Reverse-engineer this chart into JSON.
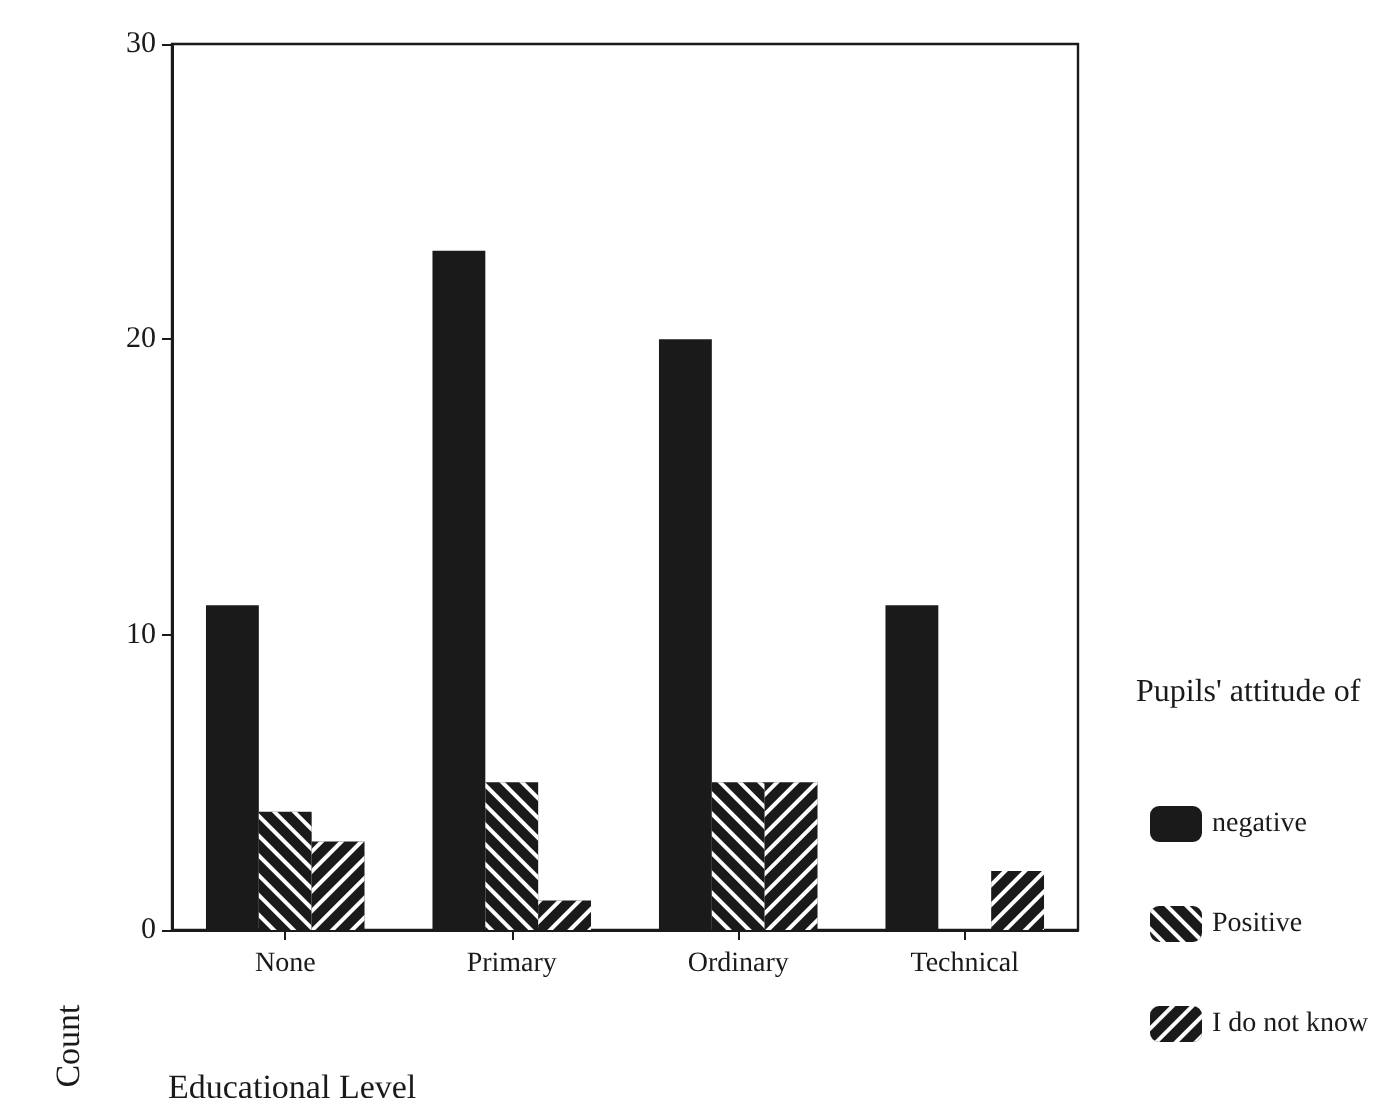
{
  "chart_data": {
    "type": "bar",
    "xlabel": "Educational Level",
    "ylabel": "Count",
    "legend_title": "Pupils' attitude of",
    "categories": [
      "None",
      "Primary",
      "Ordinary",
      "Technical"
    ],
    "series": [
      {
        "name": "negative",
        "color": "#1a1a1a",
        "values": [
          11,
          23,
          20,
          11
        ]
      },
      {
        "name": "Positive",
        "color": "#1a1a1a",
        "values": [
          4,
          5,
          5,
          0
        ]
      },
      {
        "name": "I do not know",
        "color": "#1a1a1a",
        "values": [
          3,
          1,
          5,
          2
        ]
      }
    ],
    "ylim": [
      0,
      30
    ],
    "yticks": [
      0,
      10,
      20,
      30
    ],
    "grid": false,
    "legend": "right"
  }
}
